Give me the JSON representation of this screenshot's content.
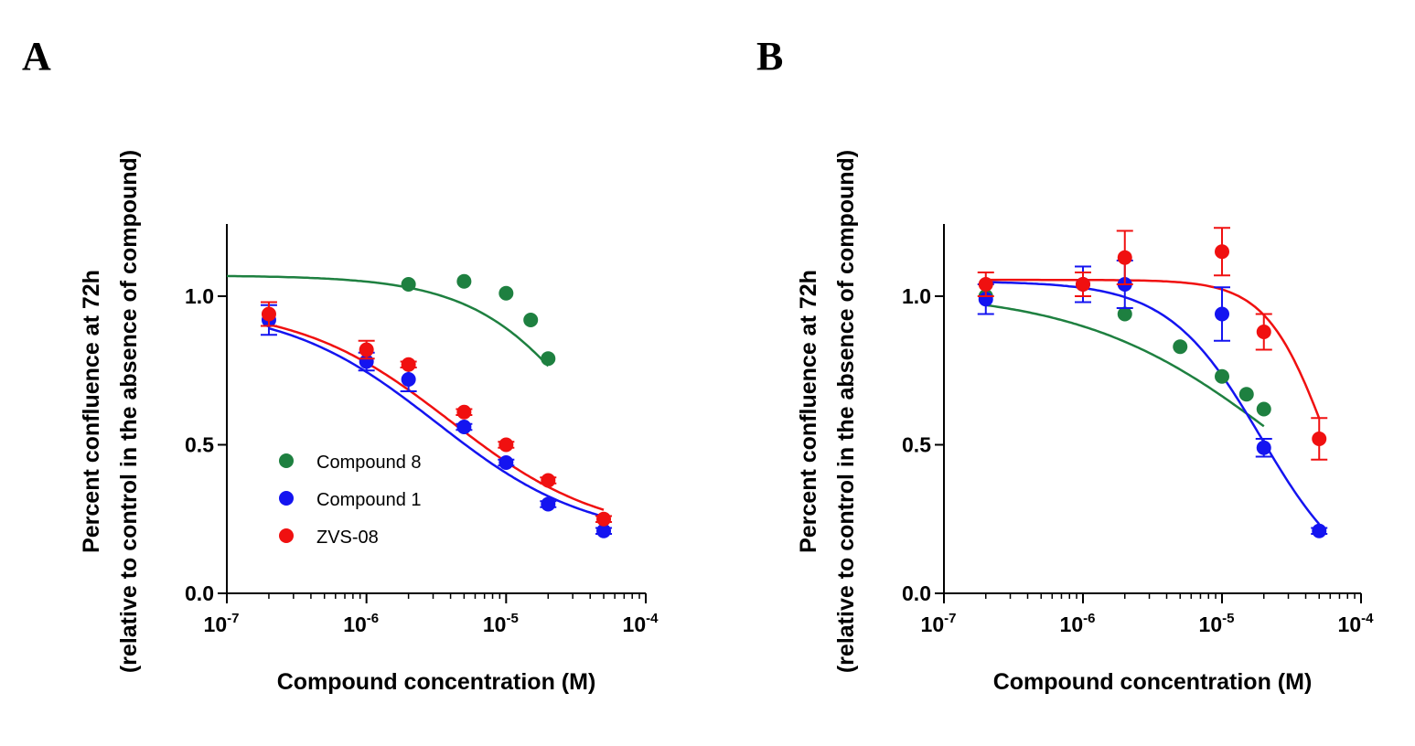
{
  "colors": {
    "compound8": "#1e8040",
    "compound1": "#1414f0",
    "zvs08": "#f01010",
    "axis": "#000000"
  },
  "chart_data": [
    {
      "panel": "A",
      "type": "scatter",
      "x_scale": "log10",
      "xlabel": "Compound concentration (M)",
      "ylabel_line1": "Percent confluence at 72h",
      "ylabel_line2": "(relative to control in the absence of compound)",
      "xlim": [
        1e-07,
        0.0001
      ],
      "ylim": [
        0,
        1.25
      ],
      "x_ticks": [
        {
          "base": "10",
          "exp": "-7",
          "value": 1e-07
        },
        {
          "base": "10",
          "exp": "-6",
          "value": 1e-06
        },
        {
          "base": "10",
          "exp": "-5",
          "value": 1e-05
        },
        {
          "base": "10",
          "exp": "-4",
          "value": 0.0001
        }
      ],
      "y_ticks": [
        {
          "label": "0.0",
          "value": 0.0
        },
        {
          "label": "0.5",
          "value": 0.5
        },
        {
          "label": "1.0",
          "value": 1.0
        }
      ],
      "legend": {
        "position": "bottom-left",
        "entries": [
          {
            "label": "Compound 8",
            "series_key": "compound8"
          },
          {
            "label": "Compound 1",
            "series_key": "compound1"
          },
          {
            "label": "ZVS-08",
            "series_key": "zvs08"
          }
        ]
      },
      "series": [
        {
          "name": "Compound 8",
          "key": "compound8",
          "x": [
            2e-06,
            5e-06,
            1e-05,
            1.5e-05,
            2e-05
          ],
          "y": [
            1.04,
            1.05,
            1.01,
            0.92,
            0.79
          ],
          "err": [
            0,
            0,
            0,
            0,
            0
          ],
          "fit": {
            "top": 1.07,
            "bottom": 0,
            "log_ic50": -4.3,
            "hill": 1.0,
            "x_range": [
              1e-07,
              2e-05
            ]
          }
        },
        {
          "name": "Compound 1",
          "key": "compound1",
          "x": [
            2e-07,
            1e-06,
            2e-06,
            5e-06,
            1e-05,
            2e-05,
            5e-05
          ],
          "y": [
            0.92,
            0.78,
            0.72,
            0.56,
            0.44,
            0.3,
            0.21
          ],
          "err": [
            0.05,
            0.03,
            0.04,
            0.01,
            0.01,
            0.01,
            0.01
          ],
          "fit": {
            "top": 0.97,
            "bottom": 0.18,
            "log_ic50": -5.5,
            "hill": 0.8,
            "x_range": [
              2e-07,
              5e-05
            ]
          }
        },
        {
          "name": "ZVS-08",
          "key": "zvs08",
          "x": [
            2e-07,
            1e-06,
            2e-06,
            5e-06,
            1e-05,
            2e-05,
            5e-05
          ],
          "y": [
            0.94,
            0.82,
            0.77,
            0.61,
            0.5,
            0.38,
            0.25
          ],
          "err": [
            0.04,
            0.03,
            0.01,
            0.01,
            0.01,
            0.01,
            0.01
          ],
          "fit": {
            "top": 0.97,
            "bottom": 0.19,
            "log_ic50": -5.4,
            "hill": 0.8,
            "x_range": [
              2e-07,
              5e-05
            ]
          }
        }
      ]
    },
    {
      "panel": "B",
      "type": "scatter",
      "x_scale": "log10",
      "xlabel": "Compound concentration (M)",
      "ylabel_line1": "Percent confluence at 72h",
      "ylabel_line2": "(relative to control in the absence of compound)",
      "xlim": [
        1e-07,
        0.0001
      ],
      "ylim": [
        0,
        1.25
      ],
      "x_ticks": [
        {
          "base": "10",
          "exp": "-7",
          "value": 1e-07
        },
        {
          "base": "10",
          "exp": "-6",
          "value": 1e-06
        },
        {
          "base": "10",
          "exp": "-5",
          "value": 1e-05
        },
        {
          "base": "10",
          "exp": "-4",
          "value": 0.0001
        }
      ],
      "y_ticks": [
        {
          "label": "0.0",
          "value": 0.0
        },
        {
          "label": "0.5",
          "value": 0.5
        },
        {
          "label": "1.0",
          "value": 1.0
        }
      ],
      "series": [
        {
          "name": "Compound 8",
          "key": "compound8",
          "x": [
            2e-07,
            2e-06,
            5e-06,
            1e-05,
            1.5e-05,
            2e-05
          ],
          "y": [
            1.0,
            0.94,
            0.83,
            0.73,
            0.67,
            0.62
          ],
          "err": [
            0,
            0,
            0,
            0,
            0,
            0
          ],
          "fit": {
            "top": 1.02,
            "bottom": 0,
            "log_ic50": -4.55,
            "hill": 0.6,
            "x_range": [
              2e-07,
              2e-05
            ]
          }
        },
        {
          "name": "Compound 1",
          "key": "compound1",
          "x": [
            2e-07,
            1e-06,
            2e-06,
            1e-05,
            2e-05,
            5e-05
          ],
          "y": [
            0.99,
            1.04,
            1.04,
            0.94,
            0.49,
            0.21
          ],
          "err": [
            0.05,
            0.06,
            0.08,
            0.09,
            0.03,
            0.01
          ],
          "fit": {
            "top": 1.05,
            "bottom": 0,
            "log_ic50": -4.72,
            "hill": 1.3,
            "x_range": [
              2e-07,
              5e-05
            ]
          }
        },
        {
          "name": "ZVS-08",
          "key": "zvs08",
          "x": [
            2e-07,
            1e-06,
            2e-06,
            1e-05,
            2e-05,
            5e-05
          ],
          "y": [
            1.04,
            1.04,
            1.13,
            1.15,
            0.88,
            0.52
          ],
          "err": [
            0.04,
            0.04,
            0.09,
            0.08,
            0.06,
            0.07
          ],
          "fit": {
            "top": 1.055,
            "bottom": 0,
            "log_ic50": -4.25,
            "hill": 2.0,
            "x_range": [
              2e-07,
              5e-05
            ]
          }
        }
      ]
    }
  ]
}
